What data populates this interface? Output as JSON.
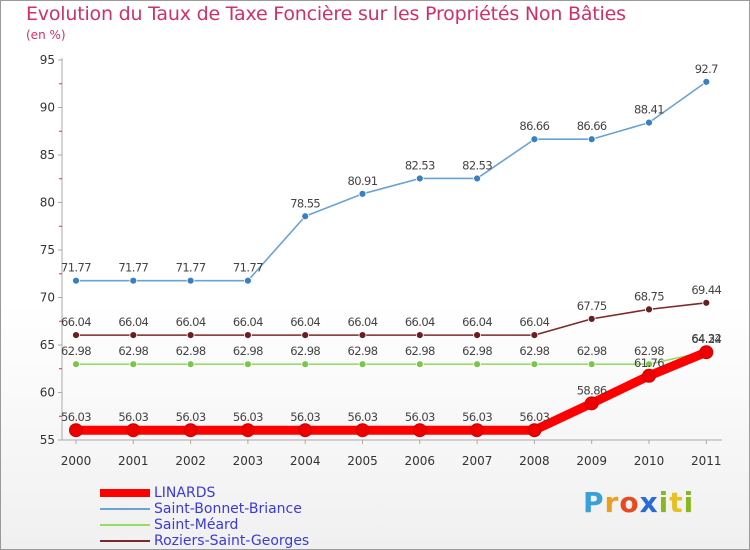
{
  "title": "Evolution du Taux de Taxe Foncière sur les Propriétés Non Bâties",
  "subtitle": "(en %)",
  "logo": {
    "letters": [
      "P",
      "r",
      "o",
      "x",
      "i",
      "t",
      "i"
    ],
    "colors": [
      "#3aa0d8",
      "#e8a020",
      "#e84a20",
      "#2a6ad8",
      "#88b820",
      "#e8c020",
      "#88b820"
    ]
  },
  "chart_data": {
    "type": "line",
    "x": [
      "2000",
      "2001",
      "2002",
      "2003",
      "2004",
      "2005",
      "2006",
      "2007",
      "2008",
      "2009",
      "2010",
      "2011"
    ],
    "ylim": [
      55,
      95
    ],
    "yticks": [
      55,
      60,
      65,
      70,
      75,
      80,
      85,
      90,
      95
    ],
    "grid": false,
    "legend_position": "bottom-left",
    "series": [
      {
        "name": "Saint-Bonnet-Briance",
        "color": "#6aa2d6",
        "marker_color": "#3a7fc0",
        "values": [
          71.77,
          71.77,
          71.77,
          71.77,
          78.55,
          80.91,
          82.53,
          82.53,
          86.66,
          86.66,
          88.41,
          92.7
        ],
        "labels": [
          "71.77",
          "71.77",
          "71.77",
          "71.77",
          "78.55",
          "80.91",
          "82.53",
          "82.53",
          "86.66",
          "86.66",
          "88.41",
          "92.7"
        ]
      },
      {
        "name": "Roziers-Saint-Georges",
        "color": "#7a2a2a",
        "marker_color": "#6a1e1e",
        "values": [
          66.04,
          66.04,
          66.04,
          66.04,
          66.04,
          66.04,
          66.04,
          66.04,
          66.04,
          67.75,
          68.75,
          69.44
        ],
        "labels": [
          "66.04",
          "66.04",
          "66.04",
          "66.04",
          "66.04",
          "66.04",
          "66.04",
          "66.04",
          "66.04",
          "67.75",
          "68.75",
          "69.44"
        ]
      },
      {
        "name": "Saint-Méard",
        "color": "#98dc68",
        "marker_color": "#7ac64a",
        "values": [
          62.98,
          62.98,
          62.98,
          62.98,
          62.98,
          62.98,
          62.98,
          62.98,
          62.98,
          62.98,
          62.98,
          64.32
        ],
        "labels": [
          "62.98",
          "62.98",
          "62.98",
          "62.98",
          "62.98",
          "62.98",
          "62.98",
          "62.98",
          "62.98",
          "62.98",
          "62.98",
          "64.32"
        ]
      },
      {
        "name": "LINARDS",
        "color": "#ff0000",
        "marker_color": "#ee0000",
        "thick": true,
        "values": [
          56.03,
          56.03,
          56.03,
          56.03,
          56.03,
          56.03,
          56.03,
          56.03,
          56.03,
          58.86,
          61.76,
          64.24
        ],
        "labels": [
          "56.03",
          "56.03",
          "56.03",
          "56.03",
          "56.03",
          "56.03",
          "56.03",
          "56.03",
          "56.03",
          "58.86",
          "61.76",
          "64.24"
        ]
      }
    ],
    "legend_order": [
      "LINARDS",
      "Saint-Bonnet-Briance",
      "Saint-Méard",
      "Roziers-Saint-Georges"
    ]
  }
}
